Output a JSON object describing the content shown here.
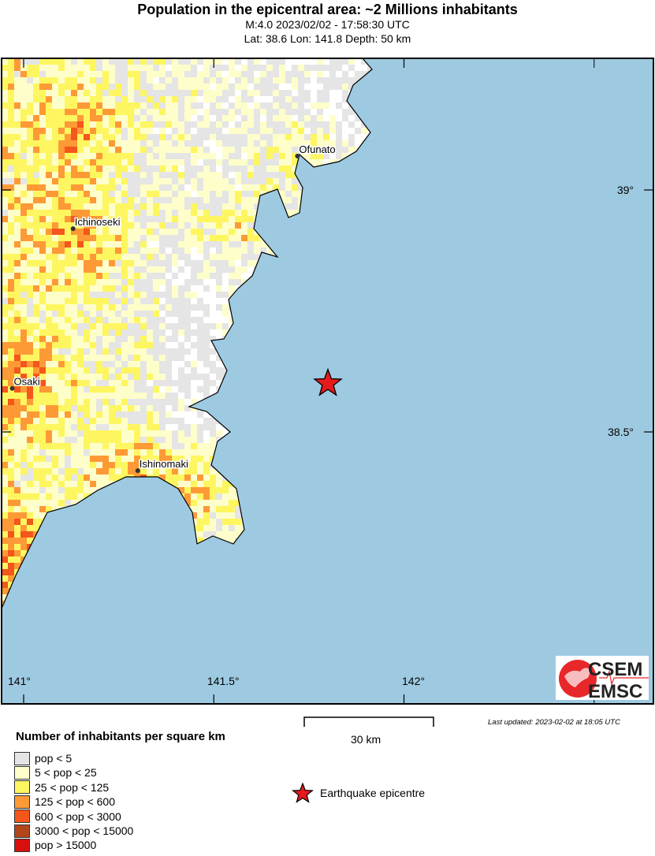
{
  "header": {
    "title": "Population in the epicentral area: ~2 Millions inhabitants",
    "line1": "M:4.0 2023/02/02 - 17:58:30 UTC",
    "line2": "Lat: 38.6 Lon: 141.8 Depth: 50 km"
  },
  "map": {
    "sea_color": "#9ecae1",
    "epicentre": {
      "lat": 38.6,
      "lon": 141.8,
      "color": "#e41a1c"
    },
    "lon_ticks": [
      {
        "value": 141,
        "label": "141°"
      },
      {
        "value": 141.5,
        "label": "141.5°"
      },
      {
        "value": 142,
        "label": "142°"
      }
    ],
    "lat_ticks": [
      {
        "value": 39,
        "label": "39°"
      },
      {
        "value": 38.5,
        "label": "38.5°"
      }
    ],
    "cities": [
      {
        "name": "Ofunato",
        "lat": 39.07,
        "lon": 141.72
      },
      {
        "name": "Ichinoseki",
        "lat": 38.92,
        "lon": 141.13
      },
      {
        "name": "Osaki",
        "lat": 38.59,
        "lon": 140.97
      },
      {
        "name": "Ishinomaki",
        "lat": 38.42,
        "lon": 141.3
      }
    ],
    "logo": {
      "top": "CSEM",
      "bottom": "EMSC"
    }
  },
  "scale": {
    "label": "30 km"
  },
  "updated": "Last updated: 2023-02-02 at 18:05 UTC",
  "legend": {
    "title": "Number of inhabitants per square km",
    "items": [
      {
        "label": "pop < 5",
        "color": "#e5e5e5"
      },
      {
        "label": "5 < pop < 25",
        "color": "#fefecb"
      },
      {
        "label": "25 < pop < 125",
        "color": "#fdf660"
      },
      {
        "label": "125 < pop < 600",
        "color": "#fd9a36"
      },
      {
        "label": "600 < pop < 3000",
        "color": "#f4561c"
      },
      {
        "label": "3000 < pop < 15000",
        "color": "#b2461a"
      },
      {
        "label": "pop > 15000",
        "color": "#d7100e"
      }
    ],
    "epicentre_label": "Earthquake epicentre"
  }
}
